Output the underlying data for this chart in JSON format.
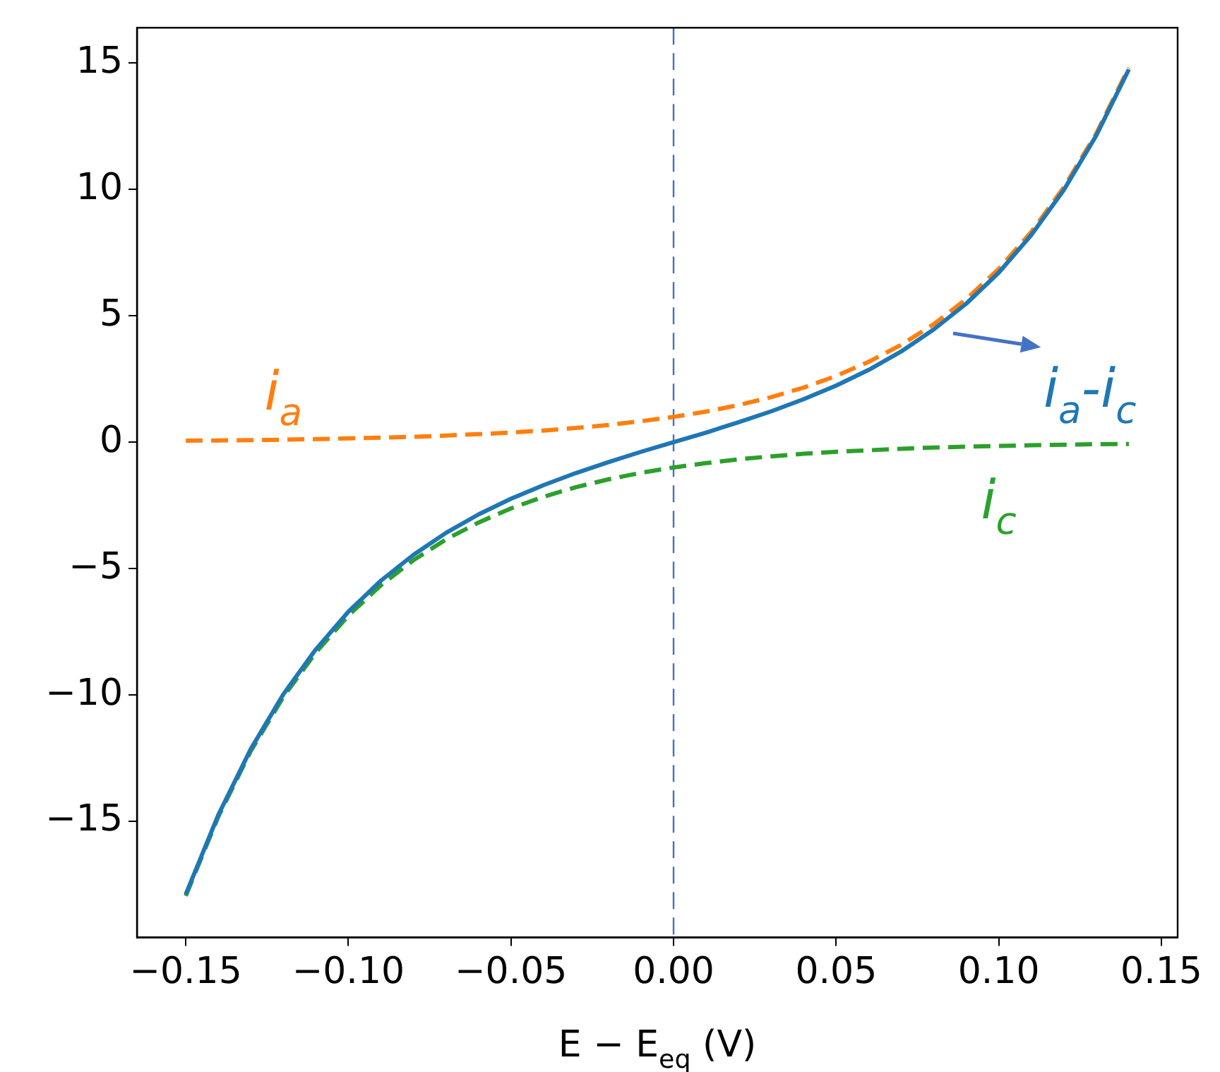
{
  "chart_data": {
    "type": "line",
    "xlabel": "E − E$_{eq}$ (V)",
    "x": [
      -0.15,
      -0.14,
      -0.13,
      -0.12,
      -0.11,
      -0.1,
      -0.09,
      -0.08,
      -0.07,
      -0.06,
      -0.05,
      -0.04,
      -0.03,
      -0.02,
      -0.01,
      0,
      0.01,
      0.02,
      0.03,
      0.04,
      0.05,
      0.06,
      0.07,
      0.08,
      0.09,
      0.1,
      0.11,
      0.12,
      0.13,
      0.14
    ],
    "series": [
      {
        "name": "i$_{a}$-i$_{c}$",
        "color": "#1f77b4",
        "line_style": "solid",
        "values": [
          -17.89,
          -14.75,
          -12.14,
          -9.98,
          -8.2,
          -6.71,
          -5.48,
          -4.46,
          -3.59,
          -2.86,
          -2.24,
          -1.7,
          -1.22,
          -0.79,
          -0.38,
          0,
          0.38,
          0.79,
          1.22,
          1.7,
          2.24,
          2.86,
          3.59,
          4.46,
          5.48,
          6.71,
          8.2,
          9.98,
          12.14,
          14.75
        ]
      },
      {
        "name": "i$_{a}$",
        "color": "#ff7f0e",
        "line_style": "dashed",
        "values": [
          0.06,
          0.07,
          0.08,
          0.1,
          0.12,
          0.15,
          0.18,
          0.21,
          0.26,
          0.32,
          0.38,
          0.46,
          0.56,
          0.68,
          0.83,
          1,
          1.21,
          1.47,
          1.78,
          2.16,
          2.62,
          3.18,
          3.85,
          4.67,
          5.66,
          6.86,
          8.32,
          10.08,
          12.22,
          14.82
        ]
      },
      {
        "name": "i$_{c}$",
        "color": "#2ca02c",
        "line_style": "dashed",
        "values": [
          -17.95,
          -14.82,
          -12.22,
          -10.08,
          -8.32,
          -6.86,
          -5.66,
          -4.67,
          -3.85,
          -3.18,
          -2.62,
          -2.16,
          -1.78,
          -1.47,
          -1.21,
          -1,
          -0.83,
          -0.68,
          -0.56,
          -0.46,
          -0.38,
          -0.32,
          -0.26,
          -0.21,
          -0.18,
          -0.15,
          -0.12,
          -0.1,
          -0.08,
          -0.07
        ]
      }
    ],
    "xlim": [
      -0.165,
      0.155
    ],
    "ylim": [
      -19.6,
      16.4
    ],
    "xticks": [
      {
        "value": -0.15,
        "label": "−0.15"
      },
      {
        "value": -0.1,
        "label": "−0.10"
      },
      {
        "value": -0.05,
        "label": "−0.05"
      },
      {
        "value": 0,
        "label": "0.00"
      },
      {
        "value": 0.05,
        "label": "0.05"
      },
      {
        "value": 0.1,
        "label": "0.10"
      },
      {
        "value": 0.15,
        "label": "0.15"
      }
    ],
    "yticks": [
      {
        "value": -15,
        "label": "−15"
      },
      {
        "value": -10,
        "label": "−10"
      },
      {
        "value": -5,
        "label": "−5"
      },
      0,
      5,
      10,
      15
    ],
    "ref_lines": [
      {
        "axis": "x",
        "value": 0,
        "color": "#4472c4",
        "line_style": "dashed"
      }
    ],
    "grid": false,
    "legend": false,
    "marker": "none"
  }
}
